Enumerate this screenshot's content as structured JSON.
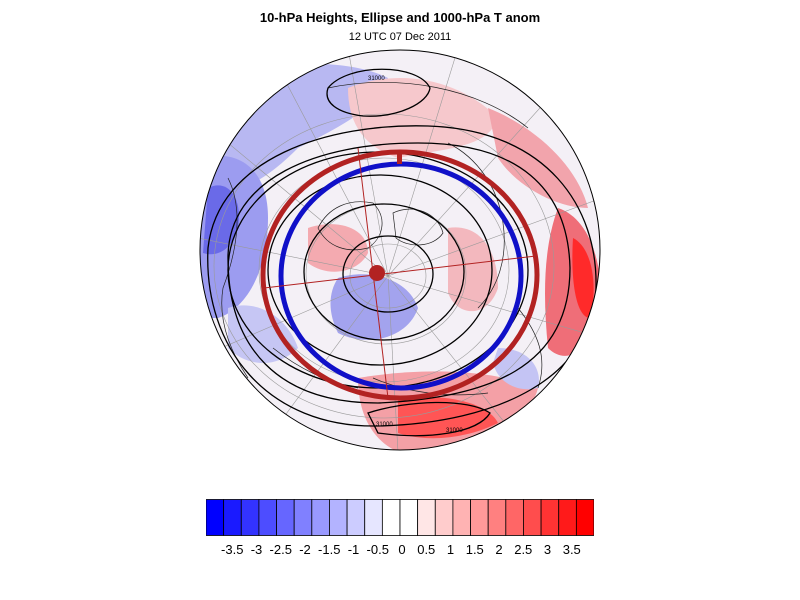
{
  "figure": {
    "title": "10-hPa Heights, Ellipse and 1000-hPa T anom",
    "subtitle": "12 UTC 07 Dec 2011"
  },
  "contour_labels": [
    "31000",
    "31000",
    "31000"
  ],
  "colorbar": {
    "colors": [
      "#0000ff",
      "#1a1aff",
      "#3333ff",
      "#4d4dff",
      "#6666ff",
      "#8080ff",
      "#9999ff",
      "#b3b3ff",
      "#ccccff",
      "#e6e6ff",
      "#ffffff",
      "#ffffff",
      "#ffe6e6",
      "#ffcccc",
      "#ffb3b3",
      "#ff9999",
      "#ff8080",
      "#ff6666",
      "#ff4d4d",
      "#ff3333",
      "#ff1a1a",
      "#ff0000"
    ],
    "tick_labels": [
      "-3.5",
      "-3",
      "-2.5",
      "-2",
      "-1.5",
      "-1",
      "-0.5",
      "0",
      "0.5",
      "1",
      "1.5",
      "2",
      "2.5",
      "3",
      "3.5"
    ],
    "min": -4,
    "max": 4,
    "negative_color": "#0000ff",
    "positive_color": "#ff0000",
    "ellipse_color": "#b22222",
    "contour_color": "#000000"
  }
}
